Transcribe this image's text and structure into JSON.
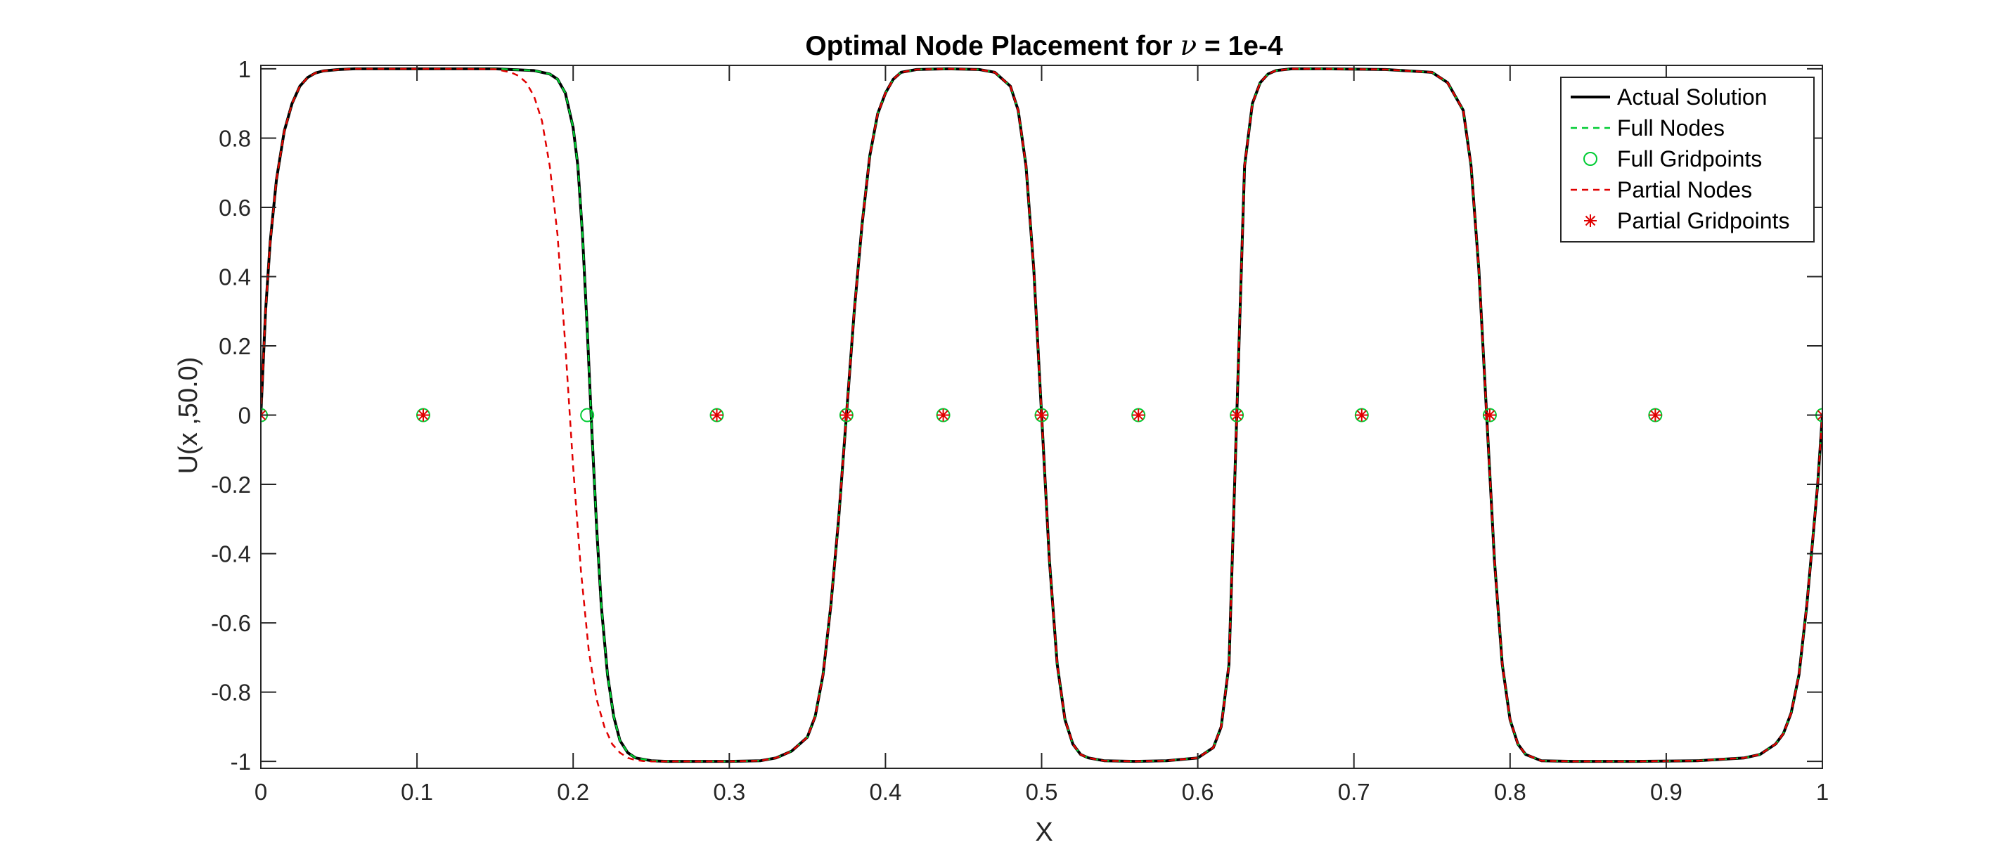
{
  "chart_data": {
    "type": "line",
    "title_parts": [
      "Optimal Node Placement for ",
      "ν",
      " = 1e-4"
    ],
    "xlabel": "X",
    "ylabel": "U(x ,50.0)",
    "xlim": [
      0,
      1
    ],
    "ylim": [
      -1.02,
      1.01
    ],
    "xticks": [
      "0",
      "0.1",
      "0.2",
      "0.3",
      "0.4",
      "0.5",
      "0.6",
      "0.7",
      "0.8",
      "0.9",
      "1"
    ],
    "yticks": [
      "-1",
      "-0.8",
      "-0.6",
      "-0.4",
      "-0.2",
      "0",
      "0.2",
      "0.4",
      "0.6",
      "0.8",
      "1"
    ],
    "grid": false,
    "legend_position": "top-right",
    "colors": {
      "actual": "#000000",
      "full": "#00cc33",
      "partial": "#e00000",
      "axes": "#262626"
    },
    "series": [
      {
        "name": "Actual Solution",
        "style": "solid",
        "width": 4,
        "color": "#000000",
        "x": [
          0,
          0.003,
          0.006,
          0.01,
          0.015,
          0.02,
          0.025,
          0.03,
          0.035,
          0.04,
          0.05,
          0.06,
          0.08,
          0.1,
          0.15,
          0.175,
          0.185,
          0.19,
          0.195,
          0.2,
          0.203,
          0.206,
          0.209,
          0.212,
          0.215,
          0.218,
          0.222,
          0.226,
          0.23,
          0.235,
          0.24,
          0.25,
          0.26,
          0.28,
          0.3,
          0.32,
          0.33,
          0.34,
          0.35,
          0.355,
          0.36,
          0.365,
          0.37,
          0.375,
          0.38,
          0.385,
          0.39,
          0.395,
          0.4,
          0.405,
          0.41,
          0.42,
          0.44,
          0.46,
          0.47,
          0.48,
          0.485,
          0.49,
          0.495,
          0.5,
          0.505,
          0.51,
          0.515,
          0.52,
          0.525,
          0.53,
          0.54,
          0.56,
          0.58,
          0.6,
          0.61,
          0.615,
          0.62,
          0.625,
          0.63,
          0.635,
          0.64,
          0.645,
          0.65,
          0.66,
          0.68,
          0.72,
          0.75,
          0.76,
          0.77,
          0.775,
          0.78,
          0.785,
          0.79,
          0.795,
          0.8,
          0.805,
          0.81,
          0.82,
          0.84,
          0.88,
          0.92,
          0.95,
          0.96,
          0.97,
          0.975,
          0.98,
          0.985,
          0.99,
          0.994,
          0.997,
          1
        ],
        "y": [
          0,
          0.3,
          0.5,
          0.68,
          0.82,
          0.9,
          0.95,
          0.975,
          0.988,
          0.994,
          0.998,
          1,
          1,
          1,
          1,
          0.995,
          0.985,
          0.97,
          0.93,
          0.83,
          0.72,
          0.52,
          0.25,
          -0.05,
          -0.32,
          -0.55,
          -0.75,
          -0.87,
          -0.94,
          -0.975,
          -0.99,
          -0.998,
          -1,
          -1,
          -1,
          -0.998,
          -0.99,
          -0.97,
          -0.93,
          -0.87,
          -0.75,
          -0.55,
          -0.3,
          0,
          0.3,
          0.55,
          0.75,
          0.87,
          0.93,
          0.97,
          0.99,
          0.998,
          1,
          0.998,
          0.99,
          0.95,
          0.88,
          0.72,
          0.42,
          0,
          -0.42,
          -0.72,
          -0.88,
          -0.95,
          -0.98,
          -0.99,
          -0.998,
          -1,
          -0.998,
          -0.99,
          -0.96,
          -0.9,
          -0.72,
          0,
          0.72,
          0.9,
          0.96,
          0.985,
          0.995,
          1,
          1,
          0.998,
          0.99,
          0.96,
          0.88,
          0.72,
          0.42,
          0,
          -0.42,
          -0.72,
          -0.88,
          -0.95,
          -0.98,
          -0.998,
          -1,
          -1,
          -0.998,
          -0.99,
          -0.98,
          -0.95,
          -0.92,
          -0.86,
          -0.75,
          -0.55,
          -0.35,
          -0.2,
          0
        ]
      },
      {
        "name": "Full Nodes",
        "style": "dashed",
        "width": 2.5,
        "color": "#00cc33",
        "x": [
          0,
          0.003,
          0.006,
          0.01,
          0.015,
          0.02,
          0.025,
          0.03,
          0.035,
          0.04,
          0.05,
          0.06,
          0.08,
          0.1,
          0.15,
          0.175,
          0.185,
          0.19,
          0.195,
          0.2,
          0.203,
          0.206,
          0.209,
          0.212,
          0.215,
          0.218,
          0.222,
          0.226,
          0.23,
          0.235,
          0.24,
          0.25,
          0.26,
          0.28,
          0.3,
          0.32,
          0.33,
          0.34,
          0.35,
          0.355,
          0.36,
          0.365,
          0.37,
          0.375,
          0.38,
          0.385,
          0.39,
          0.395,
          0.4,
          0.405,
          0.41,
          0.42,
          0.44,
          0.46,
          0.47,
          0.48,
          0.485,
          0.49,
          0.495,
          0.5,
          0.505,
          0.51,
          0.515,
          0.52,
          0.525,
          0.53,
          0.54,
          0.56,
          0.58,
          0.6,
          0.61,
          0.615,
          0.62,
          0.625,
          0.63,
          0.635,
          0.64,
          0.645,
          0.65,
          0.66,
          0.68,
          0.72,
          0.75,
          0.76,
          0.77,
          0.775,
          0.78,
          0.785,
          0.79,
          0.795,
          0.8,
          0.805,
          0.81,
          0.82,
          0.84,
          0.88,
          0.92,
          0.95,
          0.96,
          0.97,
          0.975,
          0.98,
          0.985,
          0.99,
          0.994,
          0.997,
          1
        ],
        "y": [
          0,
          0.3,
          0.5,
          0.68,
          0.82,
          0.9,
          0.95,
          0.975,
          0.988,
          0.994,
          0.998,
          1,
          1,
          1,
          1,
          0.995,
          0.985,
          0.97,
          0.93,
          0.83,
          0.72,
          0.52,
          0.25,
          -0.05,
          -0.32,
          -0.55,
          -0.75,
          -0.87,
          -0.94,
          -0.975,
          -0.99,
          -0.998,
          -1,
          -1,
          -1,
          -0.998,
          -0.99,
          -0.97,
          -0.93,
          -0.87,
          -0.75,
          -0.55,
          -0.3,
          0,
          0.3,
          0.55,
          0.75,
          0.87,
          0.93,
          0.97,
          0.99,
          0.998,
          1,
          0.998,
          0.99,
          0.95,
          0.88,
          0.72,
          0.42,
          0,
          -0.42,
          -0.72,
          -0.88,
          -0.95,
          -0.98,
          -0.99,
          -0.998,
          -1,
          -0.998,
          -0.99,
          -0.96,
          -0.9,
          -0.72,
          0,
          0.72,
          0.9,
          0.96,
          0.985,
          0.995,
          1,
          1,
          0.998,
          0.99,
          0.96,
          0.88,
          0.72,
          0.42,
          0,
          -0.42,
          -0.72,
          -0.88,
          -0.95,
          -0.98,
          -0.998,
          -1,
          -1,
          -0.998,
          -0.99,
          -0.98,
          -0.95,
          -0.92,
          -0.86,
          -0.75,
          -0.55,
          -0.35,
          -0.2,
          0
        ]
      },
      {
        "name": "Full Gridpoints",
        "style": "markers",
        "marker": "circle",
        "color": "#00cc33",
        "x": [
          0,
          0.104,
          0.209,
          0.292,
          0.375,
          0.437,
          0.5,
          0.562,
          0.625,
          0.705,
          0.787,
          0.893,
          1
        ],
        "y": [
          0,
          0,
          0,
          0,
          0,
          0,
          0,
          0,
          0,
          0,
          0,
          0,
          0
        ]
      },
      {
        "name": "Partial Nodes",
        "style": "dashed",
        "width": 2.5,
        "color": "#e00000",
        "x": [
          0,
          0.003,
          0.006,
          0.01,
          0.015,
          0.02,
          0.025,
          0.03,
          0.035,
          0.04,
          0.05,
          0.06,
          0.08,
          0.1,
          0.13,
          0.15,
          0.16,
          0.165,
          0.17,
          0.175,
          0.18,
          0.185,
          0.19,
          0.195,
          0.2,
          0.205,
          0.21,
          0.215,
          0.22,
          0.225,
          0.23,
          0.235,
          0.24,
          0.245,
          0.25,
          0.26,
          0.28,
          0.3,
          0.32,
          0.33,
          0.34,
          0.35,
          0.355,
          0.36,
          0.365,
          0.37,
          0.375,
          0.38,
          0.385,
          0.39,
          0.395,
          0.4,
          0.405,
          0.41,
          0.42,
          0.44,
          0.46,
          0.47,
          0.48,
          0.485,
          0.49,
          0.495,
          0.5,
          0.505,
          0.51,
          0.515,
          0.52,
          0.525,
          0.53,
          0.54,
          0.56,
          0.58,
          0.6,
          0.61,
          0.615,
          0.62,
          0.625,
          0.63,
          0.635,
          0.64,
          0.645,
          0.65,
          0.66,
          0.68,
          0.72,
          0.75,
          0.76,
          0.77,
          0.775,
          0.78,
          0.785,
          0.79,
          0.795,
          0.8,
          0.805,
          0.81,
          0.82,
          0.84,
          0.88,
          0.92,
          0.95,
          0.96,
          0.97,
          0.975,
          0.98,
          0.985,
          0.99,
          0.994,
          0.997,
          1
        ],
        "y": [
          0,
          0.3,
          0.5,
          0.68,
          0.82,
          0.9,
          0.95,
          0.975,
          0.988,
          0.994,
          0.998,
          1,
          1,
          1,
          1,
          0.999,
          0.99,
          0.98,
          0.96,
          0.92,
          0.85,
          0.72,
          0.52,
          0.2,
          -0.15,
          -0.45,
          -0.68,
          -0.82,
          -0.9,
          -0.95,
          -0.975,
          -0.99,
          -0.996,
          -0.999,
          -1,
          -1,
          -1,
          -1,
          -0.998,
          -0.99,
          -0.97,
          -0.93,
          -0.87,
          -0.75,
          -0.55,
          -0.3,
          0,
          0.3,
          0.55,
          0.75,
          0.87,
          0.93,
          0.97,
          0.99,
          0.998,
          1,
          0.998,
          0.99,
          0.95,
          0.88,
          0.72,
          0.42,
          0,
          -0.42,
          -0.72,
          -0.88,
          -0.95,
          -0.98,
          -0.99,
          -0.998,
          -1,
          -0.998,
          -0.99,
          -0.96,
          -0.9,
          -0.72,
          0,
          0.72,
          0.9,
          0.96,
          0.985,
          0.995,
          1,
          1,
          0.998,
          0.99,
          0.96,
          0.88,
          0.72,
          0.42,
          0,
          -0.42,
          -0.72,
          -0.88,
          -0.95,
          -0.98,
          -0.998,
          -1,
          -1,
          -0.998,
          -0.99,
          -0.98,
          -0.95,
          -0.92,
          -0.86,
          -0.75,
          -0.55,
          -0.35,
          -0.2,
          0
        ]
      },
      {
        "name": "Partial Gridpoints",
        "style": "markers",
        "marker": "asterisk",
        "color": "#e00000",
        "x": [
          0,
          0.104,
          0.292,
          0.375,
          0.437,
          0.5,
          0.562,
          0.625,
          0.705,
          0.787,
          0.893,
          1
        ],
        "y": [
          0,
          0,
          0,
          0,
          0,
          0,
          0,
          0,
          0,
          0,
          0,
          0
        ]
      }
    ]
  }
}
